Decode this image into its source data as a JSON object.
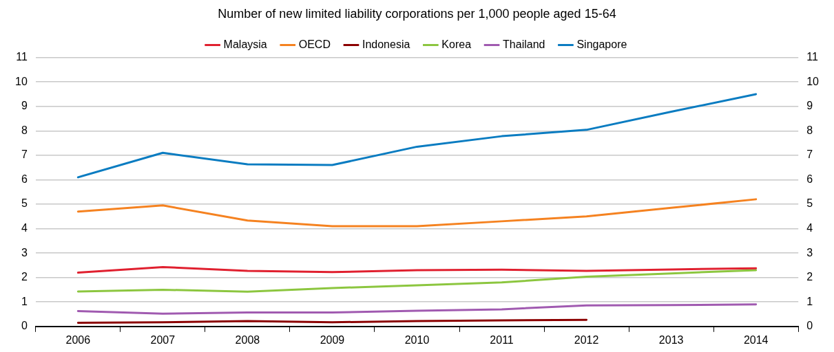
{
  "chart_data": {
    "type": "line",
    "title": "Number of new limited liability corporations per 1,000 people aged 15-64",
    "categories": [
      "2006",
      "2007",
      "2008",
      "2009",
      "2010",
      "2011",
      "2012",
      "2013",
      "2014"
    ],
    "series": [
      {
        "name": "Malaysia",
        "color": "#e0202f",
        "values": [
          2.2,
          2.43,
          2.27,
          2.22,
          2.3,
          2.32,
          2.27,
          2.33,
          2.38
        ]
      },
      {
        "name": "OECD",
        "color": "#f58220",
        "values": [
          4.7,
          4.95,
          4.33,
          4.1,
          4.1,
          4.3,
          4.5,
          4.85,
          5.2
        ]
      },
      {
        "name": "Indonesia",
        "color": "#8b0000",
        "values": [
          0.15,
          0.17,
          0.22,
          0.17,
          0.22,
          0.25,
          0.27,
          null,
          null
        ]
      },
      {
        "name": "Korea",
        "color": "#8cc63f",
        "values": [
          1.43,
          1.5,
          1.42,
          1.57,
          1.68,
          1.8,
          2.03,
          2.17,
          2.3
        ]
      },
      {
        "name": "Thailand",
        "color": "#a05ab0",
        "values": [
          0.63,
          0.52,
          0.57,
          0.57,
          0.64,
          0.7,
          0.86,
          0.87,
          0.9
        ]
      },
      {
        "name": "Singapore",
        "color": "#0a7cc1",
        "values": [
          6.1,
          7.1,
          6.63,
          6.6,
          7.35,
          7.78,
          8.04,
          8.78,
          9.5
        ]
      }
    ],
    "ylim": [
      0,
      11
    ],
    "yticks": [
      0,
      1,
      2,
      3,
      4,
      5,
      6,
      7,
      8,
      9,
      10,
      11
    ],
    "y2lim": [
      0,
      11
    ],
    "y2ticks": [
      0,
      1,
      2,
      3,
      4,
      5,
      6,
      7,
      8,
      9,
      10,
      11
    ],
    "grid": "y",
    "legend": "top",
    "marker": "none",
    "line_style": "solid"
  }
}
